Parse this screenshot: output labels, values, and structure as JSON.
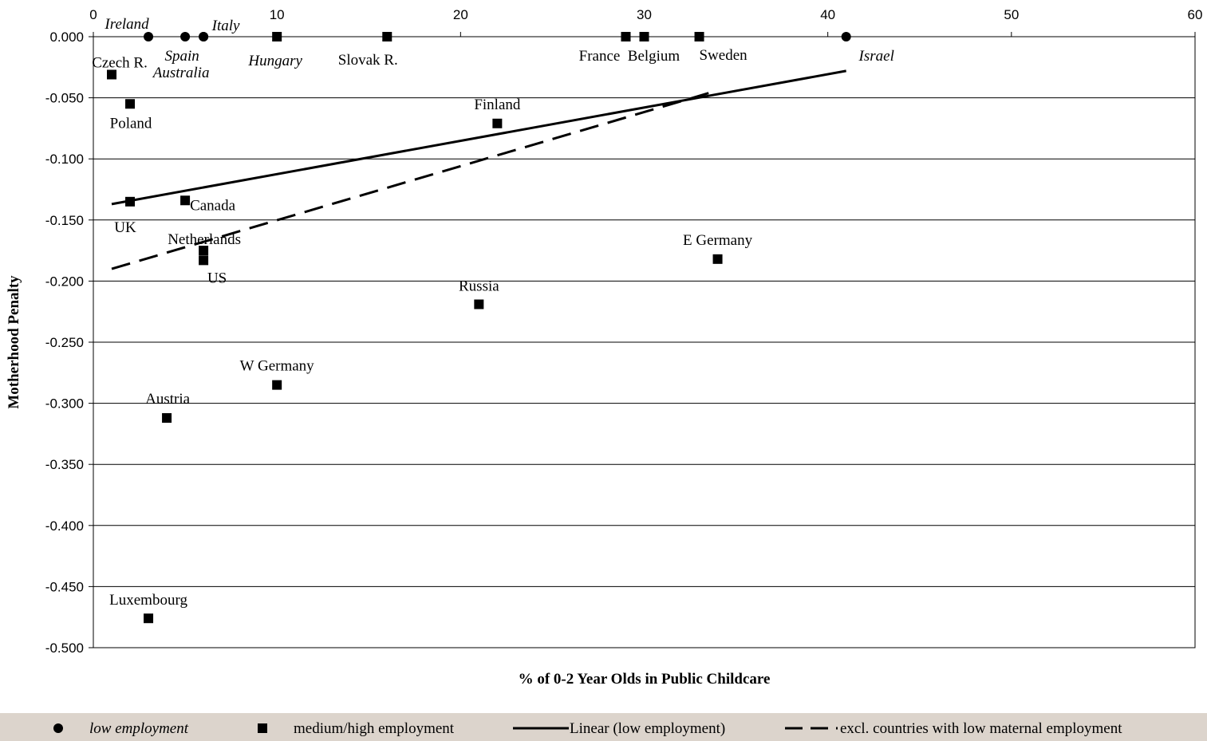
{
  "chart_data": {
    "type": "scatter",
    "xlabel": "% of 0-2 Year Olds in Public Childcare",
    "ylabel": "Motherhood Penalty",
    "xlim": [
      0,
      60
    ],
    "ylim": [
      -0.5,
      0
    ],
    "x_ticks": [
      "0",
      "10",
      "20",
      "30",
      "40",
      "50",
      "60"
    ],
    "y_ticks": [
      "0.000",
      "-0.050",
      "-0.100",
      "-0.150",
      "-0.200",
      "-0.250",
      "-0.300",
      "-0.350",
      "-0.400",
      "-0.450",
      "-0.500"
    ],
    "grid": "horizontal",
    "legend_position": "bottom",
    "series": [
      {
        "name": "low employment",
        "marker": "circle",
        "points": [
          {
            "label": "Ireland",
            "x": 3,
            "y": 0.0
          },
          {
            "label": "Spain",
            "x": 5,
            "y": 0.0
          },
          {
            "label": "Italy",
            "x": 6,
            "y": 0.0
          },
          {
            "label": "Australia",
            "x": 6,
            "y": 0.0
          },
          {
            "label": "Israel",
            "x": 41,
            "y": 0.0
          }
        ]
      },
      {
        "name": "medium/high employment",
        "marker": "square",
        "points": [
          {
            "label": "Hungary",
            "x": 10,
            "y": 0.0
          },
          {
            "label": "Slovak R.",
            "x": 16,
            "y": 0.0
          },
          {
            "label": "France",
            "x": 29,
            "y": 0.0
          },
          {
            "label": "Belgium",
            "x": 30,
            "y": 0.0
          },
          {
            "label": "Sweden",
            "x": 33,
            "y": 0.0
          },
          {
            "label": "Czech R.",
            "x": 1,
            "y": -0.031
          },
          {
            "label": "Poland",
            "x": 2,
            "y": -0.055
          },
          {
            "label": "Finland",
            "x": 22,
            "y": -0.071
          },
          {
            "label": "UK",
            "x": 2,
            "y": -0.135
          },
          {
            "label": "Canada",
            "x": 5,
            "y": -0.134
          },
          {
            "label": "Netherlands",
            "x": 6,
            "y": -0.175
          },
          {
            "label": "US",
            "x": 6,
            "y": -0.183
          },
          {
            "label": "E Germany",
            "x": 34,
            "y": -0.182
          },
          {
            "label": "Russia",
            "x": 21,
            "y": -0.219
          },
          {
            "label": "W Germany",
            "x": 10,
            "y": -0.285
          },
          {
            "label": "Austria",
            "x": 4,
            "y": -0.312
          },
          {
            "label": "Luxembourg",
            "x": 3,
            "y": -0.476
          }
        ]
      },
      {
        "name": "Linear (low employment)",
        "type": "line",
        "style": "solid",
        "points": [
          {
            "x": 1,
            "y": -0.137
          },
          {
            "x": 41,
            "y": -0.028
          }
        ]
      },
      {
        "name": "excl. countries with low maternal employment",
        "type": "line",
        "style": "dashed",
        "points": [
          {
            "x": 1,
            "y": -0.19
          },
          {
            "x": 34,
            "y": -0.044
          }
        ]
      }
    ],
    "colors": {
      "marker": "#000000",
      "grid": "#000000",
      "legend_bg": "#dcd4cc"
    }
  }
}
